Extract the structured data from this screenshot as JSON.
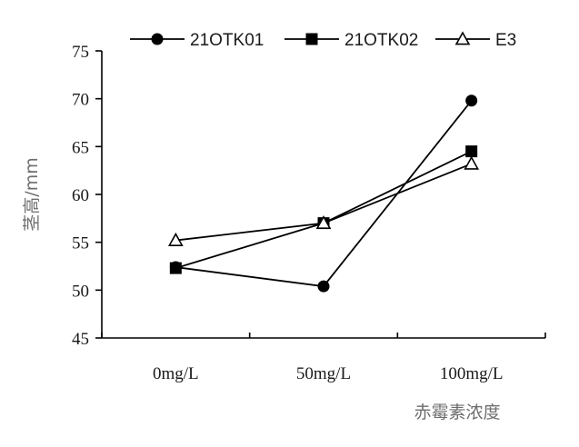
{
  "chart_data": {
    "type": "line",
    "title": "",
    "xlabel": "赤霉素浓度",
    "ylabel": "茎高/mm",
    "categories": [
      "0mg/L",
      "50mg/L",
      "100mg/L"
    ],
    "ylim": [
      45,
      75
    ],
    "yticks": [
      45,
      50,
      55,
      60,
      65,
      70,
      75
    ],
    "grid": false,
    "legend": "top-right",
    "series": [
      {
        "name": "21OTK01",
        "marker": "circle-filled",
        "values": [
          52.4,
          50.4,
          69.8
        ]
      },
      {
        "name": "21OTK02",
        "marker": "square-filled",
        "values": [
          52.3,
          57.0,
          64.5
        ]
      },
      {
        "name": "E3",
        "marker": "triangle-open",
        "values": [
          55.2,
          57.0,
          63.2
        ]
      }
    ],
    "colors": {
      "line": "#000000",
      "axis_title": "#6e6e6e",
      "text": "#1a1a1a"
    }
  }
}
